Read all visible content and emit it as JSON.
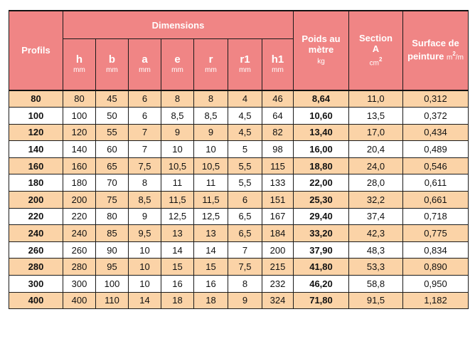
{
  "header": {
    "profils": "Profils",
    "dimensions": "Dimensions",
    "dim_columns": [
      {
        "sym": "h",
        "unit": "mm"
      },
      {
        "sym": "b",
        "unit": "mm"
      },
      {
        "sym": "a",
        "unit": "mm"
      },
      {
        "sym": "e",
        "unit": "mm"
      },
      {
        "sym": "r",
        "unit": "mm"
      },
      {
        "sym": "r1",
        "unit": "mm"
      },
      {
        "sym": "h1",
        "unit": "mm"
      }
    ],
    "poids": {
      "line1": "Poids au",
      "line2": "mètre",
      "unit": "kg"
    },
    "section": {
      "line1": "Section",
      "line2": "A",
      "unit": "cm",
      "sup": "2"
    },
    "surface": {
      "line1": "Surface de",
      "line2": "peinture",
      "unit": "m",
      "sup": "2",
      "tail": "/m"
    }
  },
  "rows": [
    [
      "80",
      "80",
      "45",
      "6",
      "8",
      "8",
      "4",
      "46",
      "8,64",
      "11,0",
      "0,312"
    ],
    [
      "100",
      "100",
      "50",
      "6",
      "8,5",
      "8,5",
      "4,5",
      "64",
      "10,60",
      "13,5",
      "0,372"
    ],
    [
      "120",
      "120",
      "55",
      "7",
      "9",
      "9",
      "4,5",
      "82",
      "13,40",
      "17,0",
      "0,434"
    ],
    [
      "140",
      "140",
      "60",
      "7",
      "10",
      "10",
      "5",
      "98",
      "16,00",
      "20,4",
      "0,489"
    ],
    [
      "160",
      "160",
      "65",
      "7,5",
      "10,5",
      "10,5",
      "5,5",
      "115",
      "18,80",
      "24,0",
      "0,546"
    ],
    [
      "180",
      "180",
      "70",
      "8",
      "11",
      "11",
      "5,5",
      "133",
      "22,00",
      "28,0",
      "0,611"
    ],
    [
      "200",
      "200",
      "75",
      "8,5",
      "11,5",
      "11,5",
      "6",
      "151",
      "25,30",
      "32,2",
      "0,661"
    ],
    [
      "220",
      "220",
      "80",
      "9",
      "12,5",
      "12,5",
      "6,5",
      "167",
      "29,40",
      "37,4",
      "0,718"
    ],
    [
      "240",
      "240",
      "85",
      "9,5",
      "13",
      "13",
      "6,5",
      "184",
      "33,20",
      "42,3",
      "0,775"
    ],
    [
      "260",
      "260",
      "90",
      "10",
      "14",
      "14",
      "7",
      "200",
      "37,90",
      "48,3",
      "0,834"
    ],
    [
      "280",
      "280",
      "95",
      "10",
      "15",
      "15",
      "7,5",
      "215",
      "41,80",
      "53,3",
      "0,890"
    ],
    [
      "300",
      "300",
      "100",
      "10",
      "16",
      "16",
      "8",
      "232",
      "46,20",
      "58,8",
      "0,950"
    ],
    [
      "400",
      "400",
      "110",
      "14",
      "18",
      "18",
      "9",
      "324",
      "71,80",
      "91,5",
      "1,182"
    ]
  ],
  "colors": {
    "header_bg": "#f08585",
    "odd_row_bg": "#fbd3a7",
    "even_row_bg": "#ffffff",
    "border": "#1a1a1a"
  }
}
